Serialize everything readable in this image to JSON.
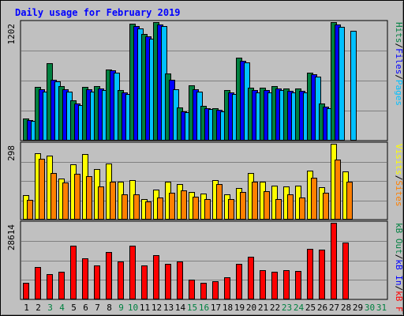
{
  "chart_data": {
    "type": "bar",
    "title": "Daily usage for February 2019",
    "categories": [
      "1",
      "2",
      "3",
      "4",
      "5",
      "6",
      "7",
      "8",
      "9",
      "10",
      "11",
      "12",
      "13",
      "14",
      "15",
      "16",
      "17",
      "18",
      "19",
      "20",
      "21",
      "22",
      "23",
      "24",
      "25",
      "26",
      "27",
      "28",
      "29",
      "30",
      "31"
    ],
    "category_colors": [
      "#000000",
      "#000000",
      "#008040",
      "#008040",
      "#000000",
      "#000000",
      "#000000",
      "#000000",
      "#008040",
      "#008040",
      "#000000",
      "#000000",
      "#000000",
      "#000000",
      "#008040",
      "#008040",
      "#000000",
      "#000000",
      "#000000",
      "#000000",
      "#000000",
      "#000000",
      "#008040",
      "#008040",
      "#000000",
      "#000000",
      "#000000",
      "#000000",
      "#000000",
      "#008040",
      "#008040"
    ],
    "panels": [
      {
        "id": "hits-files-pages",
        "max_label": "1202",
        "ymax": 1202,
        "right_labels": [
          {
            "text": "Pages",
            "color": "#00c0ff"
          },
          {
            "text": "Files",
            "color": "#0000ff"
          },
          {
            "text": "Hits",
            "color": "#008040"
          }
        ],
        "series": [
          {
            "name": "Hits",
            "color": "#008040",
            "values": [
              225,
              545,
              785,
              550,
              405,
              545,
              555,
              725,
              510,
              1185,
              1085,
              1200,
              680,
              340,
              560,
              350,
              330,
              515,
              845,
              540,
              540,
              555,
              525,
              530,
              690,
              375,
              1200,
              null,
              null,
              null,
              null
            ]
          },
          {
            "name": "Files",
            "color": "#0000ff",
            "values": [
              210,
              520,
              620,
              520,
              380,
              520,
              525,
              710,
              490,
              1160,
              1060,
              1175,
              620,
              300,
              520,
              330,
              310,
              490,
              810,
              510,
              510,
              525,
              505,
              505,
              670,
              345,
              1180,
              null,
              null,
              null,
              null
            ]
          },
          {
            "name": "Pages",
            "color": "#00c0ff",
            "values": [
              200,
              500,
              600,
              500,
              360,
              500,
              510,
              690,
              470,
              1140,
              1030,
              1160,
              520,
              290,
              500,
              320,
              300,
              470,
              790,
              490,
              490,
              510,
              485,
              485,
              650,
              330,
              1150,
              1110,
              null,
              null,
              null
            ]
          }
        ]
      },
      {
        "id": "visits-sites",
        "max_label": "298",
        "ymax": 298,
        "right_labels": [
          {
            "text": "Sites",
            "color": "#ff8000"
          },
          {
            "text": "Visits",
            "color": "#ffff00"
          }
        ],
        "series": [
          {
            "name": "Visits",
            "color": "#ffff00",
            "values": [
              95,
              262,
              250,
              160,
              218,
              258,
              200,
              220,
              150,
              155,
              82,
              118,
              150,
              140,
              108,
              102,
              155,
              98,
              125,
              182,
              148,
              135,
              130,
              135,
              192,
              128,
              298,
              190,
              null,
              null,
              null
            ]
          },
          {
            "name": "Sites",
            "color": "#ff8000",
            "values": [
              78,
              240,
              182,
              145,
              180,
              172,
              130,
              150,
              98,
              98,
              72,
              88,
              105,
              115,
              90,
              80,
              140,
              82,
              110,
              148,
              112,
              80,
              100,
              88,
              165,
              105,
              235,
              148,
              null,
              null,
              null
            ]
          }
        ]
      },
      {
        "id": "kbytes",
        "max_label": "28614",
        "ymax": 28614,
        "right_labels": [
          {
            "text": "kB F",
            "color": "#ff0000"
          },
          {
            "text": "kB In",
            "color": "#0000ff"
          },
          {
            "text": "kB Out",
            "color": "#008040"
          }
        ],
        "series": [
          {
            "name": "kB F",
            "color": "#ff0000",
            "values": [
              6100,
              12200,
              9300,
              10300,
              20100,
              15400,
              12600,
              17700,
              14100,
              20100,
              12800,
              16400,
              13300,
              14100,
              7400,
              6200,
              6800,
              8400,
              13300,
              15900,
              10800,
              10300,
              11000,
              10600,
              19000,
              18700,
              28614,
              21200,
              null,
              null,
              null
            ]
          }
        ]
      }
    ]
  }
}
